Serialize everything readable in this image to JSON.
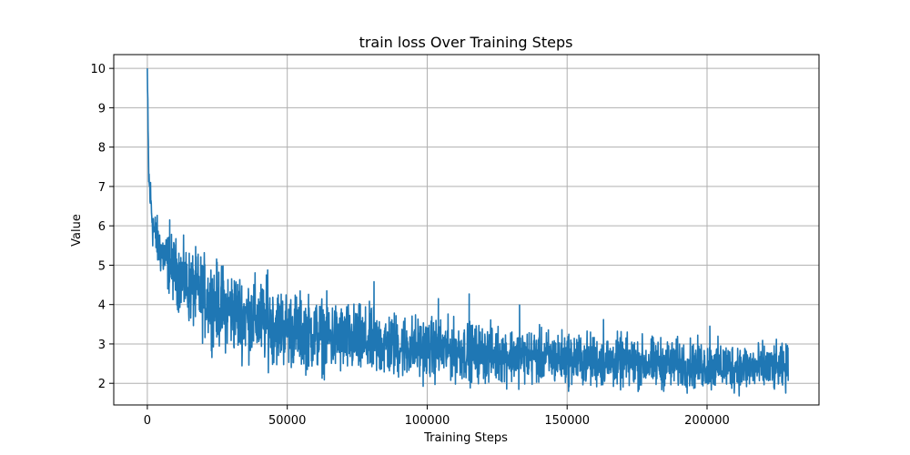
{
  "chart_data": {
    "type": "line",
    "title": "train loss Over Training Steps",
    "xlabel": "Training Steps",
    "ylabel": "Value",
    "xlim": [
      -12000,
      240000
    ],
    "ylim": [
      1.45,
      10.35
    ],
    "xticks": [
      0,
      50000,
      100000,
      150000,
      200000
    ],
    "xtick_labels": [
      "0",
      "50000",
      "100000",
      "150000",
      "200000"
    ],
    "yticks": [
      2,
      3,
      4,
      5,
      6,
      7,
      8,
      9,
      10
    ],
    "ytick_labels": [
      "2",
      "3",
      "4",
      "5",
      "6",
      "7",
      "8",
      "9",
      "10"
    ],
    "grid": true,
    "legend": "none",
    "series_color": "#1f77b4",
    "series": [
      {
        "x": [
          0,
          300,
          600,
          1000,
          1500,
          2000,
          3000,
          4000,
          5000,
          7000,
          10000,
          15000,
          20000,
          25000,
          30000,
          35000,
          40000,
          45000,
          50000,
          60000,
          70000,
          80000,
          90000,
          100000,
          110000,
          120000,
          130000,
          140000,
          150000,
          160000,
          170000,
          180000,
          190000,
          200000,
          210000,
          220000,
          229000
        ],
        "y": [
          10.0,
          8.0,
          7.1,
          6.8,
          6.4,
          6.0,
          5.7,
          5.5,
          5.35,
          5.1,
          4.85,
          4.45,
          4.2,
          4.0,
          3.85,
          3.7,
          3.6,
          3.5,
          3.4,
          3.25,
          3.12,
          3.02,
          2.95,
          2.88,
          2.82,
          2.76,
          2.71,
          2.67,
          2.63,
          2.58,
          2.54,
          2.51,
          2.48,
          2.45,
          2.42,
          2.39,
          2.37
        ],
        "noise": [
          0,
          0.4,
          0.35,
          0.3,
          0.3,
          0.3,
          0.3,
          0.3,
          0.3,
          0.35,
          0.4,
          0.45,
          0.5,
          0.5,
          0.5,
          0.5,
          0.5,
          0.48,
          0.46,
          0.45,
          0.44,
          0.42,
          0.4,
          0.38,
          0.36,
          0.35,
          0.34,
          0.33,
          0.33,
          0.32,
          0.32,
          0.31,
          0.3,
          0.3,
          0.3,
          0.29,
          0.28
        ]
      }
    ],
    "spikes": [
      {
        "x": 8000,
        "y": 6.15
      },
      {
        "x": 43000,
        "y": 4.88
      },
      {
        "x": 81000,
        "y": 4.58
      },
      {
        "x": 104000,
        "y": 4.15
      },
      {
        "x": 115000,
        "y": 4.27
      },
      {
        "x": 133000,
        "y": 3.99
      },
      {
        "x": 163000,
        "y": 3.62
      },
      {
        "x": 201000,
        "y": 3.45
      }
    ]
  }
}
